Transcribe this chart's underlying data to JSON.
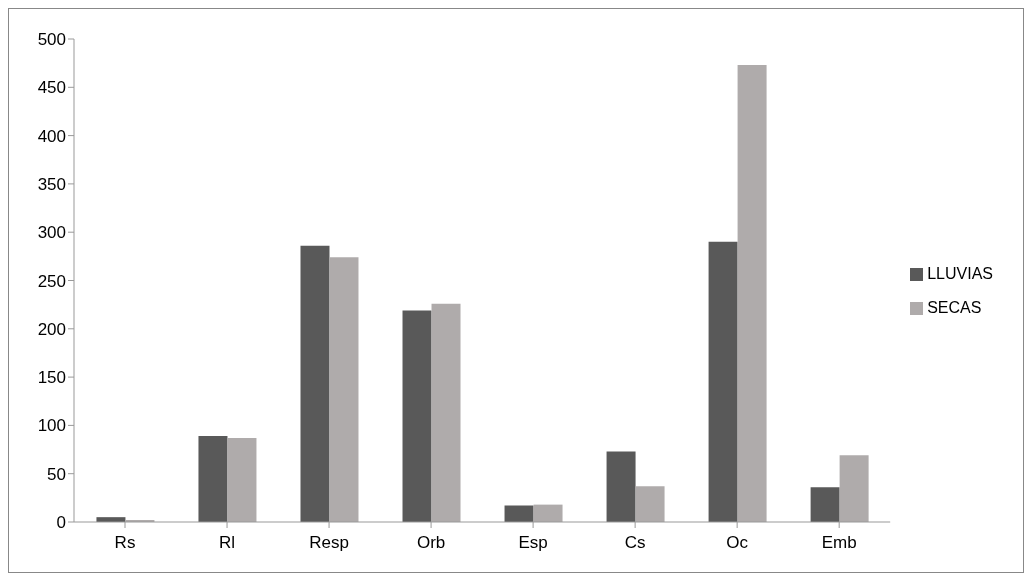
{
  "chart_data": {
    "type": "bar",
    "categories": [
      "Rs",
      "Rl",
      "Resp",
      "Orb",
      "Esp",
      "Cs",
      "Oc",
      "Emb"
    ],
    "series": [
      {
        "name": "LLUVIAS",
        "color": "#595959",
        "values": [
          5,
          89,
          286,
          219,
          17,
          73,
          290,
          36
        ]
      },
      {
        "name": "SECAS",
        "color": "#afabab",
        "values": [
          2,
          87,
          274,
          226,
          18,
          37,
          473,
          69
        ]
      }
    ],
    "ylim": [
      0,
      500
    ],
    "yticks": [
      0,
      50,
      100,
      150,
      200,
      250,
      300,
      350,
      400,
      450,
      500
    ],
    "grid": false,
    "legend": "right"
  }
}
